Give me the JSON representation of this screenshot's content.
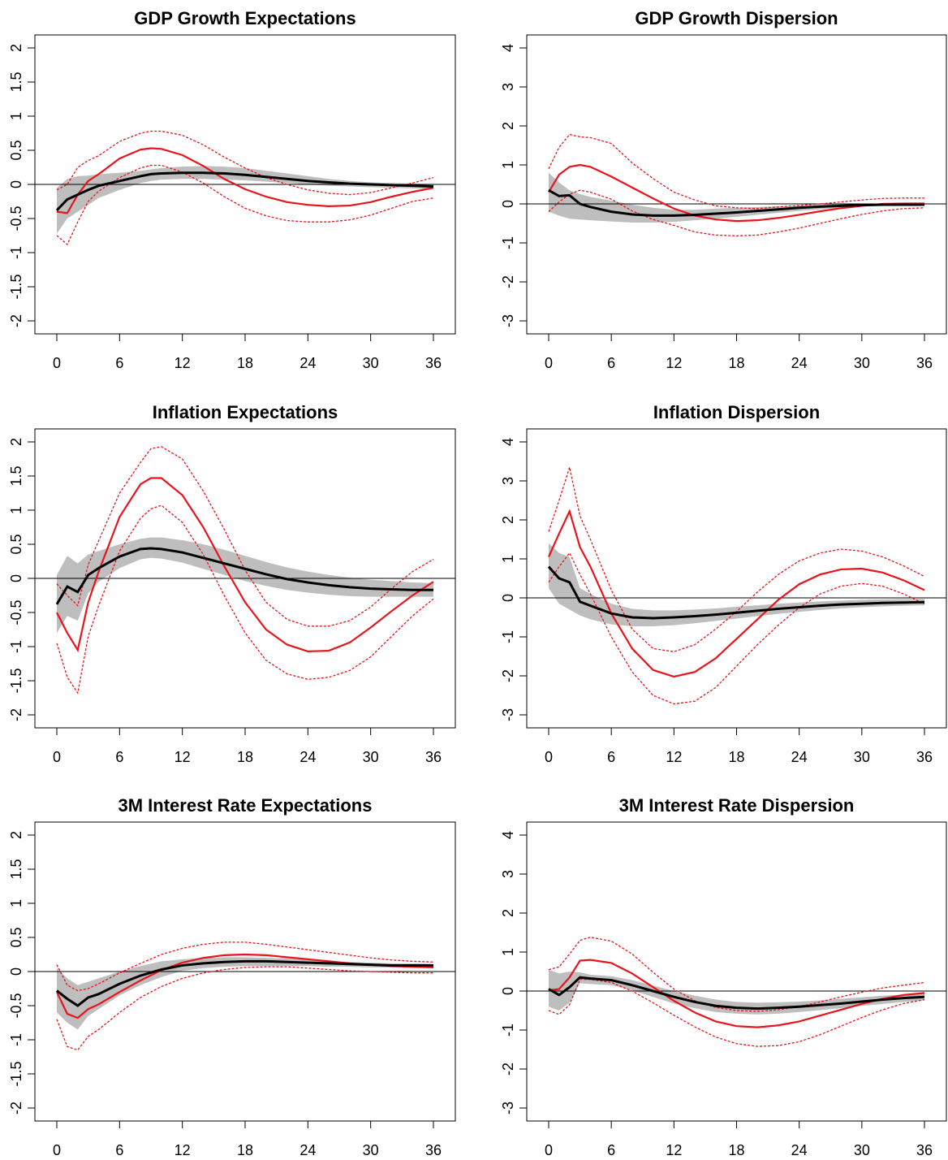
{
  "chart_data": [
    {
      "type": "line",
      "title": "GDP Growth Expectations",
      "xlabel": "",
      "ylabel": "",
      "xlim": [
        0,
        36
      ],
      "ylim": [
        -2,
        2
      ],
      "xticks": [
        "0",
        "6",
        "12",
        "18",
        "24",
        "30",
        "36"
      ],
      "yticks": [
        "-2",
        "-1.5",
        "-1",
        "-0.5",
        "0",
        "0.5",
        "1",
        "1.5",
        "2"
      ],
      "grid": false,
      "legend": "none",
      "zero_line": true,
      "x": [
        0,
        1,
        2,
        3,
        4,
        6,
        8,
        9,
        10,
        12,
        14,
        16,
        18,
        20,
        22,
        24,
        26,
        28,
        30,
        32,
        34,
        36
      ],
      "black_line": [
        -0.38,
        -0.22,
        -0.15,
        -0.08,
        -0.02,
        0.05,
        0.12,
        0.15,
        0.16,
        0.17,
        0.17,
        0.16,
        0.14,
        0.11,
        0.08,
        0.05,
        0.03,
        0.01,
        0.0,
        -0.01,
        -0.02,
        -0.03
      ],
      "gray_band_upper": [
        -0.05,
        0.08,
        0.12,
        0.13,
        0.15,
        0.17,
        0.2,
        0.22,
        0.24,
        0.26,
        0.27,
        0.26,
        0.24,
        0.2,
        0.16,
        0.12,
        0.08,
        0.05,
        0.03,
        0.02,
        0.01,
        0.0
      ],
      "gray_band_lower": [
        -0.72,
        -0.5,
        -0.4,
        -0.3,
        -0.2,
        -0.08,
        0.02,
        0.05,
        0.07,
        0.08,
        0.08,
        0.07,
        0.06,
        0.04,
        0.02,
        0.0,
        -0.02,
        -0.03,
        -0.04,
        -0.05,
        -0.06,
        -0.07
      ],
      "red_line": [
        -0.4,
        -0.42,
        -0.15,
        0.05,
        0.15,
        0.38,
        0.51,
        0.53,
        0.52,
        0.43,
        0.27,
        0.08,
        -0.07,
        -0.18,
        -0.26,
        -0.3,
        -0.32,
        -0.31,
        -0.26,
        -0.18,
        -0.11,
        -0.05
      ],
      "red_band_upper": [
        -0.08,
        0.0,
        0.25,
        0.35,
        0.42,
        0.63,
        0.75,
        0.78,
        0.78,
        0.72,
        0.58,
        0.4,
        0.24,
        0.1,
        0.0,
        -0.08,
        -0.13,
        -0.15,
        -0.12,
        -0.05,
        0.02,
        0.1
      ],
      "red_band_lower": [
        -0.75,
        -0.88,
        -0.55,
        -0.25,
        -0.1,
        0.1,
        0.24,
        0.28,
        0.28,
        0.18,
        0.02,
        -0.18,
        -0.35,
        -0.46,
        -0.53,
        -0.55,
        -0.55,
        -0.52,
        -0.45,
        -0.35,
        -0.25,
        -0.2
      ]
    },
    {
      "type": "line",
      "title": "GDP Growth Dispersion",
      "xlabel": "",
      "ylabel": "",
      "xlim": [
        0,
        36
      ],
      "ylim": [
        -3,
        4
      ],
      "xticks": [
        "0",
        "6",
        "12",
        "18",
        "24",
        "30",
        "36"
      ],
      "yticks": [
        "-3",
        "-2",
        "-1",
        "0",
        "1",
        "2",
        "3",
        "4"
      ],
      "grid": false,
      "legend": "none",
      "zero_line": true,
      "x": [
        0,
        1,
        2,
        3,
        4,
        6,
        8,
        10,
        12,
        14,
        16,
        18,
        20,
        22,
        24,
        26,
        28,
        30,
        32,
        34,
        36
      ],
      "black_line": [
        0.35,
        0.2,
        0.22,
        0.0,
        -0.08,
        -0.2,
        -0.27,
        -0.3,
        -0.3,
        -0.28,
        -0.25,
        -0.22,
        -0.18,
        -0.14,
        -0.1,
        -0.07,
        -0.05,
        -0.03,
        -0.02,
        -0.02,
        -0.02
      ],
      "gray_band_upper": [
        0.8,
        0.55,
        0.35,
        0.25,
        0.18,
        0.08,
        -0.02,
        -0.1,
        -0.15,
        -0.15,
        -0.12,
        -0.1,
        -0.08,
        -0.06,
        -0.04,
        -0.02,
        -0.01,
        0.0,
        0.0,
        0.0,
        0.0
      ],
      "gray_band_lower": [
        -0.2,
        -0.3,
        -0.38,
        -0.4,
        -0.42,
        -0.45,
        -0.48,
        -0.48,
        -0.46,
        -0.42,
        -0.38,
        -0.33,
        -0.28,
        -0.23,
        -0.18,
        -0.14,
        -0.1,
        -0.07,
        -0.05,
        -0.04,
        -0.04
      ],
      "red_line": [
        0.3,
        0.75,
        0.95,
        1.0,
        0.95,
        0.7,
        0.42,
        0.14,
        -0.12,
        -0.3,
        -0.4,
        -0.44,
        -0.42,
        -0.36,
        -0.28,
        -0.19,
        -0.11,
        -0.05,
        0.0,
        0.01,
        0.01
      ],
      "red_band_upper": [
        0.9,
        1.45,
        1.78,
        1.72,
        1.7,
        1.55,
        1.05,
        0.65,
        0.3,
        0.1,
        -0.05,
        -0.1,
        -0.12,
        -0.08,
        -0.04,
        0.0,
        0.05,
        0.1,
        0.14,
        0.15,
        0.15
      ],
      "red_band_lower": [
        -0.2,
        0.05,
        0.25,
        0.35,
        0.3,
        0.12,
        -0.18,
        -0.4,
        -0.55,
        -0.72,
        -0.8,
        -0.82,
        -0.8,
        -0.72,
        -0.62,
        -0.5,
        -0.38,
        -0.27,
        -0.18,
        -0.12,
        -0.1
      ]
    },
    {
      "type": "line",
      "title": "Inflation Expectations",
      "xlabel": "",
      "ylabel": "",
      "xlim": [
        0,
        36
      ],
      "ylim": [
        -2,
        2
      ],
      "xticks": [
        "0",
        "6",
        "12",
        "18",
        "24",
        "30",
        "36"
      ],
      "yticks": [
        "-2",
        "-1.5",
        "-1",
        "-0.5",
        "0",
        "0.5",
        "1",
        "1.5",
        "2"
      ],
      "grid": false,
      "legend": "none",
      "zero_line": true,
      "x": [
        0,
        1,
        2,
        3,
        4,
        6,
        8,
        9,
        10,
        12,
        14,
        16,
        18,
        20,
        22,
        24,
        26,
        28,
        30,
        32,
        34,
        36
      ],
      "black_line": [
        -0.38,
        -0.12,
        -0.2,
        0.05,
        0.15,
        0.32,
        0.43,
        0.44,
        0.43,
        0.38,
        0.3,
        0.22,
        0.14,
        0.06,
        -0.01,
        -0.06,
        -0.1,
        -0.13,
        -0.15,
        -0.16,
        -0.17,
        -0.17
      ],
      "gray_band_upper": [
        0.05,
        0.33,
        0.22,
        0.35,
        0.4,
        0.5,
        0.58,
        0.6,
        0.6,
        0.56,
        0.5,
        0.42,
        0.33,
        0.24,
        0.16,
        0.1,
        0.05,
        0.01,
        -0.02,
        -0.04,
        -0.06,
        -0.07
      ],
      "gray_band_lower": [
        -0.8,
        -0.55,
        -0.62,
        -0.22,
        -0.05,
        0.15,
        0.28,
        0.3,
        0.29,
        0.23,
        0.14,
        0.05,
        -0.04,
        -0.11,
        -0.17,
        -0.21,
        -0.24,
        -0.26,
        -0.27,
        -0.27,
        -0.27,
        -0.27
      ],
      "red_line": [
        -0.5,
        -0.8,
        -1.05,
        -0.35,
        0.1,
        0.9,
        1.38,
        1.47,
        1.47,
        1.22,
        0.75,
        0.18,
        -0.35,
        -0.75,
        -0.97,
        -1.07,
        -1.06,
        -0.94,
        -0.72,
        -0.48,
        -0.25,
        -0.05
      ],
      "red_band_upper": [
        -0.08,
        -0.25,
        -0.4,
        0.2,
        0.55,
        1.25,
        1.7,
        1.9,
        1.93,
        1.75,
        1.28,
        0.72,
        0.12,
        -0.35,
        -0.6,
        -0.7,
        -0.7,
        -0.62,
        -0.42,
        -0.15,
        0.1,
        0.28
      ],
      "red_band_lower": [
        -0.95,
        -1.45,
        -1.68,
        -0.85,
        -0.4,
        0.4,
        0.88,
        1.02,
        1.07,
        0.82,
        0.35,
        -0.25,
        -0.8,
        -1.2,
        -1.4,
        -1.48,
        -1.45,
        -1.35,
        -1.15,
        -0.85,
        -0.55,
        -0.3
      ]
    },
    {
      "type": "line",
      "title": "Inflation Dispersion",
      "xlabel": "",
      "ylabel": "",
      "xlim": [
        0,
        36
      ],
      "ylim": [
        -3,
        4
      ],
      "xticks": [
        "0",
        "6",
        "12",
        "18",
        "24",
        "30",
        "36"
      ],
      "yticks": [
        "-3",
        "-2",
        "-1",
        "0",
        "1",
        "2",
        "3",
        "4"
      ],
      "grid": false,
      "legend": "none",
      "zero_line": true,
      "x": [
        0,
        1,
        2,
        3,
        4,
        6,
        8,
        10,
        12,
        14,
        16,
        18,
        20,
        22,
        24,
        26,
        28,
        30,
        32,
        34,
        36
      ],
      "black_line": [
        0.8,
        0.5,
        0.4,
        -0.1,
        -0.2,
        -0.4,
        -0.5,
        -0.52,
        -0.5,
        -0.47,
        -0.43,
        -0.38,
        -0.33,
        -0.28,
        -0.24,
        -0.2,
        -0.17,
        -0.15,
        -0.13,
        -0.12,
        -0.11
      ],
      "gray_band_upper": [
        1.4,
        1.15,
        1.05,
        0.25,
        0.1,
        -0.15,
        -0.28,
        -0.32,
        -0.32,
        -0.3,
        -0.27,
        -0.23,
        -0.19,
        -0.15,
        -0.12,
        -0.09,
        -0.07,
        -0.05,
        -0.04,
        -0.03,
        -0.03
      ],
      "gray_band_lower": [
        0.25,
        -0.15,
        -0.3,
        -0.45,
        -0.55,
        -0.68,
        -0.73,
        -0.73,
        -0.7,
        -0.65,
        -0.59,
        -0.53,
        -0.47,
        -0.41,
        -0.36,
        -0.31,
        -0.27,
        -0.24,
        -0.22,
        -0.2,
        -0.19
      ],
      "red_line": [
        1.05,
        1.65,
        2.22,
        1.3,
        0.8,
        -0.4,
        -1.3,
        -1.85,
        -2.02,
        -1.9,
        -1.55,
        -1.05,
        -0.55,
        -0.05,
        0.35,
        0.6,
        0.73,
        0.75,
        0.65,
        0.45,
        0.2
      ],
      "red_band_upper": [
        1.7,
        2.5,
        3.35,
        2.1,
        1.5,
        0.2,
        -0.8,
        -1.3,
        -1.38,
        -1.2,
        -0.8,
        -0.35,
        0.15,
        0.6,
        0.95,
        1.15,
        1.25,
        1.2,
        1.05,
        0.82,
        0.55
      ],
      "red_band_lower": [
        0.4,
        0.8,
        1.15,
        0.6,
        0.1,
        -1.0,
        -1.9,
        -2.5,
        -2.72,
        -2.65,
        -2.3,
        -1.75,
        -1.2,
        -0.7,
        -0.25,
        0.1,
        0.3,
        0.37,
        0.3,
        0.1,
        -0.15
      ]
    },
    {
      "type": "line",
      "title": "3M Interest Rate Expectations",
      "xlabel": "",
      "ylabel": "",
      "xlim": [
        0,
        36
      ],
      "ylim": [
        -2,
        2
      ],
      "xticks": [
        "0",
        "6",
        "12",
        "18",
        "24",
        "30",
        "36"
      ],
      "yticks": [
        "-2",
        "-1.5",
        "-1",
        "-0.5",
        "0",
        "0.5",
        "1",
        "1.5",
        "2"
      ],
      "grid": false,
      "legend": "none",
      "zero_line": true,
      "x": [
        0,
        1,
        2,
        3,
        4,
        6,
        8,
        10,
        12,
        14,
        16,
        18,
        20,
        22,
        24,
        26,
        28,
        30,
        32,
        34,
        36
      ],
      "black_line": [
        -0.28,
        -0.4,
        -0.5,
        -0.38,
        -0.33,
        -0.18,
        -0.06,
        0.03,
        0.09,
        0.12,
        0.14,
        0.15,
        0.15,
        0.14,
        0.13,
        0.12,
        0.11,
        0.1,
        0.09,
        0.09,
        0.09
      ],
      "gray_band_upper": [
        0.05,
        -0.1,
        -0.2,
        -0.15,
        -0.1,
        0.0,
        0.08,
        0.15,
        0.18,
        0.2,
        0.21,
        0.21,
        0.2,
        0.19,
        0.17,
        0.15,
        0.14,
        0.13,
        0.12,
        0.12,
        0.11
      ],
      "gray_band_lower": [
        -0.6,
        -0.75,
        -0.85,
        -0.65,
        -0.55,
        -0.35,
        -0.2,
        -0.08,
        0.01,
        0.05,
        0.07,
        0.08,
        0.08,
        0.08,
        0.08,
        0.07,
        0.07,
        0.06,
        0.06,
        0.06,
        0.06
      ],
      "red_line": [
        -0.3,
        -0.62,
        -0.68,
        -0.55,
        -0.48,
        -0.3,
        -0.13,
        0.02,
        0.13,
        0.2,
        0.24,
        0.25,
        0.24,
        0.21,
        0.18,
        0.15,
        0.12,
        0.1,
        0.08,
        0.07,
        0.06
      ],
      "red_band_upper": [
        0.1,
        -0.2,
        -0.28,
        -0.25,
        -0.18,
        -0.02,
        0.12,
        0.25,
        0.34,
        0.4,
        0.43,
        0.43,
        0.4,
        0.36,
        0.32,
        0.28,
        0.24,
        0.2,
        0.17,
        0.15,
        0.14
      ],
      "red_band_lower": [
        -0.7,
        -1.1,
        -1.15,
        -0.95,
        -0.85,
        -0.6,
        -0.38,
        -0.22,
        -0.1,
        -0.02,
        0.03,
        0.06,
        0.07,
        0.07,
        0.05,
        0.03,
        0.01,
        0.0,
        -0.01,
        -0.02,
        -0.02
      ]
    },
    {
      "type": "line",
      "title": "3M Interest Rate Dispersion",
      "xlabel": "",
      "ylabel": "",
      "xlim": [
        0,
        36
      ],
      "ylim": [
        -3,
        4
      ],
      "xticks": [
        "0",
        "6",
        "12",
        "18",
        "24",
        "30",
        "36"
      ],
      "yticks": [
        "-3",
        "-2",
        "-1",
        "0",
        "1",
        "2",
        "3",
        "4"
      ],
      "grid": false,
      "legend": "none",
      "zero_line": true,
      "x": [
        0,
        1,
        2,
        3,
        4,
        6,
        8,
        10,
        12,
        14,
        16,
        18,
        20,
        22,
        24,
        26,
        28,
        30,
        32,
        34,
        36
      ],
      "black_line": [
        0.05,
        -0.1,
        0.1,
        0.35,
        0.32,
        0.28,
        0.15,
        0.0,
        -0.15,
        -0.28,
        -0.38,
        -0.43,
        -0.45,
        -0.43,
        -0.4,
        -0.36,
        -0.32,
        -0.27,
        -0.22,
        -0.18,
        -0.15
      ],
      "gray_band_upper": [
        0.55,
        0.45,
        0.5,
        0.48,
        0.42,
        0.38,
        0.28,
        0.14,
        0.0,
        -0.12,
        -0.22,
        -0.28,
        -0.3,
        -0.29,
        -0.27,
        -0.24,
        -0.2,
        -0.16,
        -0.12,
        -0.09,
        -0.07
      ],
      "gray_band_lower": [
        -0.4,
        -0.5,
        -0.3,
        0.2,
        0.18,
        0.15,
        0.02,
        -0.15,
        -0.32,
        -0.44,
        -0.54,
        -0.58,
        -0.6,
        -0.58,
        -0.54,
        -0.49,
        -0.44,
        -0.38,
        -0.33,
        -0.28,
        -0.24
      ],
      "red_line": [
        0.02,
        0.05,
        0.35,
        0.78,
        0.8,
        0.72,
        0.45,
        0.1,
        -0.25,
        -0.55,
        -0.78,
        -0.9,
        -0.93,
        -0.88,
        -0.78,
        -0.63,
        -0.48,
        -0.33,
        -0.2,
        -0.1,
        -0.05
      ],
      "red_band_upper": [
        0.55,
        0.62,
        0.95,
        1.3,
        1.38,
        1.28,
        0.95,
        0.48,
        0.05,
        -0.25,
        -0.42,
        -0.5,
        -0.52,
        -0.48,
        -0.4,
        -0.28,
        -0.15,
        -0.03,
        0.08,
        0.15,
        0.22
      ],
      "red_band_lower": [
        -0.5,
        -0.6,
        -0.35,
        0.3,
        0.3,
        0.22,
        0.0,
        -0.3,
        -0.62,
        -0.92,
        -1.18,
        -1.35,
        -1.42,
        -1.4,
        -1.3,
        -1.12,
        -0.9,
        -0.68,
        -0.48,
        -0.32,
        -0.22
      ]
    }
  ],
  "colors": {
    "black_line": "#000000",
    "gray_band": "#bebebe",
    "red_line": "#e8141c",
    "zero_line": "#000000",
    "axes": "#000000"
  }
}
